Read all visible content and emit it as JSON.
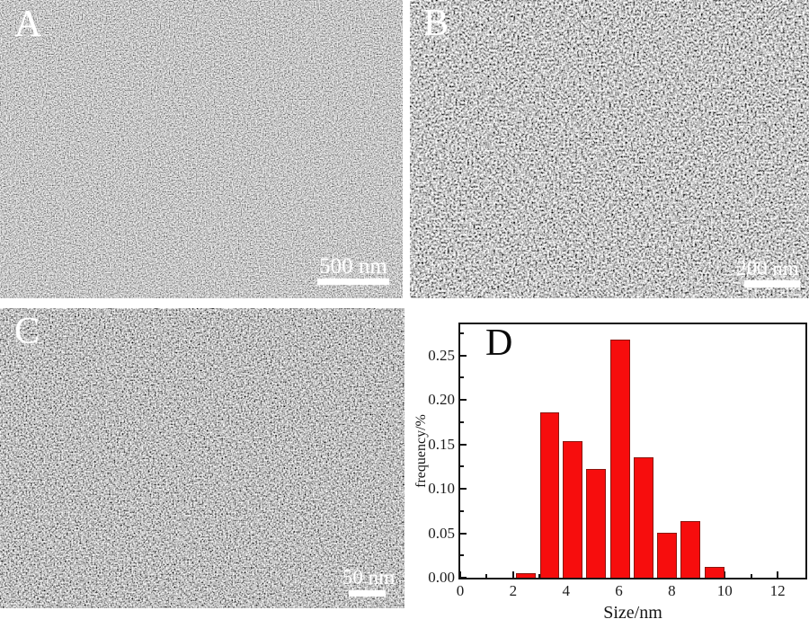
{
  "panels": {
    "a": {
      "label": "A",
      "scalebar_text": "500 nm"
    },
    "b": {
      "label": "B",
      "scalebar_text": "200 nm"
    },
    "c": {
      "label": "C",
      "scalebar_text": "50 nm"
    },
    "d": {
      "label": "D"
    }
  },
  "chart_data": {
    "type": "bar",
    "title": "",
    "xlabel": "Size/nm",
    "ylabel": "frequency/%",
    "x_centers": [
      2.49,
      3.38,
      4.26,
      5.13,
      6.04,
      6.93,
      7.81,
      8.71,
      9.61
    ],
    "values": [
      0.005,
      0.186,
      0.154,
      0.122,
      0.268,
      0.135,
      0.051,
      0.064,
      0.012
    ],
    "bar_width": 0.74,
    "xlim": [
      0,
      13.05
    ],
    "ylim": [
      0,
      0.285
    ],
    "x_major_ticks": {
      "values": [
        0,
        2,
        4,
        6,
        8,
        10,
        12
      ],
      "labels": [
        "0",
        "2",
        "4",
        "6",
        "8",
        "10",
        "12"
      ]
    },
    "x_minor_ticks": [
      1,
      3,
      5,
      7,
      9,
      11
    ],
    "y_major_ticks": {
      "values": [
        0,
        0.05,
        0.1,
        0.15,
        0.2,
        0.25
      ],
      "labels": [
        "0.00",
        "0.05",
        "0.10",
        "0.15",
        "0.20",
        "0.25"
      ]
    },
    "y_minor_ticks": [
      0.025,
      0.075,
      0.125,
      0.175,
      0.225,
      0.275
    ],
    "bar_fill": "#f70d0d",
    "bar_edge": "#8a1710",
    "axis_color": "#141414",
    "grid": false,
    "legend": "none"
  }
}
